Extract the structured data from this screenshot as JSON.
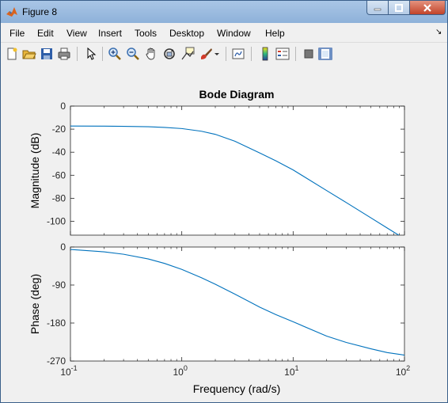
{
  "window": {
    "title": "Figure 8"
  },
  "menu": [
    "File",
    "Edit",
    "View",
    "Insert",
    "Tools",
    "Desktop",
    "Window",
    "Help"
  ],
  "toolbar": [
    "new-figure",
    "open",
    "save",
    "print",
    "pointer",
    "zoom-in",
    "zoom-out",
    "pan",
    "rotate",
    "data-cursor",
    "brush",
    "link",
    "colorbar",
    "legend",
    "hide-plot-tools",
    "show-plot-tools"
  ],
  "chart_data": {
    "type": "line",
    "title": "Bode Diagram",
    "xlabel": "Frequency  (rad/s)",
    "x_scale": "log",
    "x_range": [
      0.1,
      100
    ],
    "x_ticks": [
      0.1,
      1,
      10,
      100
    ],
    "x_tick_labels": [
      {
        "base": "10",
        "exp": "-1"
      },
      {
        "base": "10",
        "exp": "0"
      },
      {
        "base": "10",
        "exp": "1"
      },
      {
        "base": "10",
        "exp": "2"
      }
    ],
    "grid": false,
    "line_color": "#0072bd",
    "panels": [
      {
        "ylabel": "Magnitude (dB)",
        "ylim": [
          -112,
          0
        ],
        "yticks": [
          0,
          -20,
          -40,
          -60,
          -80,
          -100
        ],
        "ytick_labels": [
          "0",
          "-20",
          "-40",
          "-60",
          "-80",
          "-100"
        ],
        "series": [
          {
            "x": [
              0.1,
              0.2,
              0.3,
              0.5,
              0.7,
              1,
              1.5,
              2,
              3,
              5,
              7,
              10,
              20,
              30,
              50,
              70,
              100
            ],
            "y": [
              -17.3,
              -17.4,
              -17.6,
              -17.9,
              -18.5,
              -19.5,
              -21.8,
              -24.5,
              -30.5,
              -40.6,
              -47.5,
              -55.4,
              -73.3,
              -83.7,
              -97,
              -105.8,
              -115.1
            ]
          }
        ]
      },
      {
        "ylabel": "Phase (deg)",
        "ylim": [
          -270,
          0
        ],
        "yticks": [
          0,
          -90,
          -180,
          -270
        ],
        "ytick_labels": [
          "0",
          "-90",
          "-180",
          "-270"
        ],
        "series": [
          {
            "x": [
              0.1,
              0.2,
              0.3,
              0.5,
              0.7,
              1,
              1.5,
              2,
              3,
              5,
              7,
              10,
              20,
              30,
              50,
              70,
              100
            ],
            "y": [
              -5.7,
              -11.4,
              -17.1,
              -28.2,
              -38.8,
              -52.9,
              -72.6,
              -88.2,
              -111.5,
              -142.2,
              -160,
              -177,
              -211,
              -226,
              -241,
              -250,
              -256
            ]
          }
        ]
      }
    ]
  }
}
